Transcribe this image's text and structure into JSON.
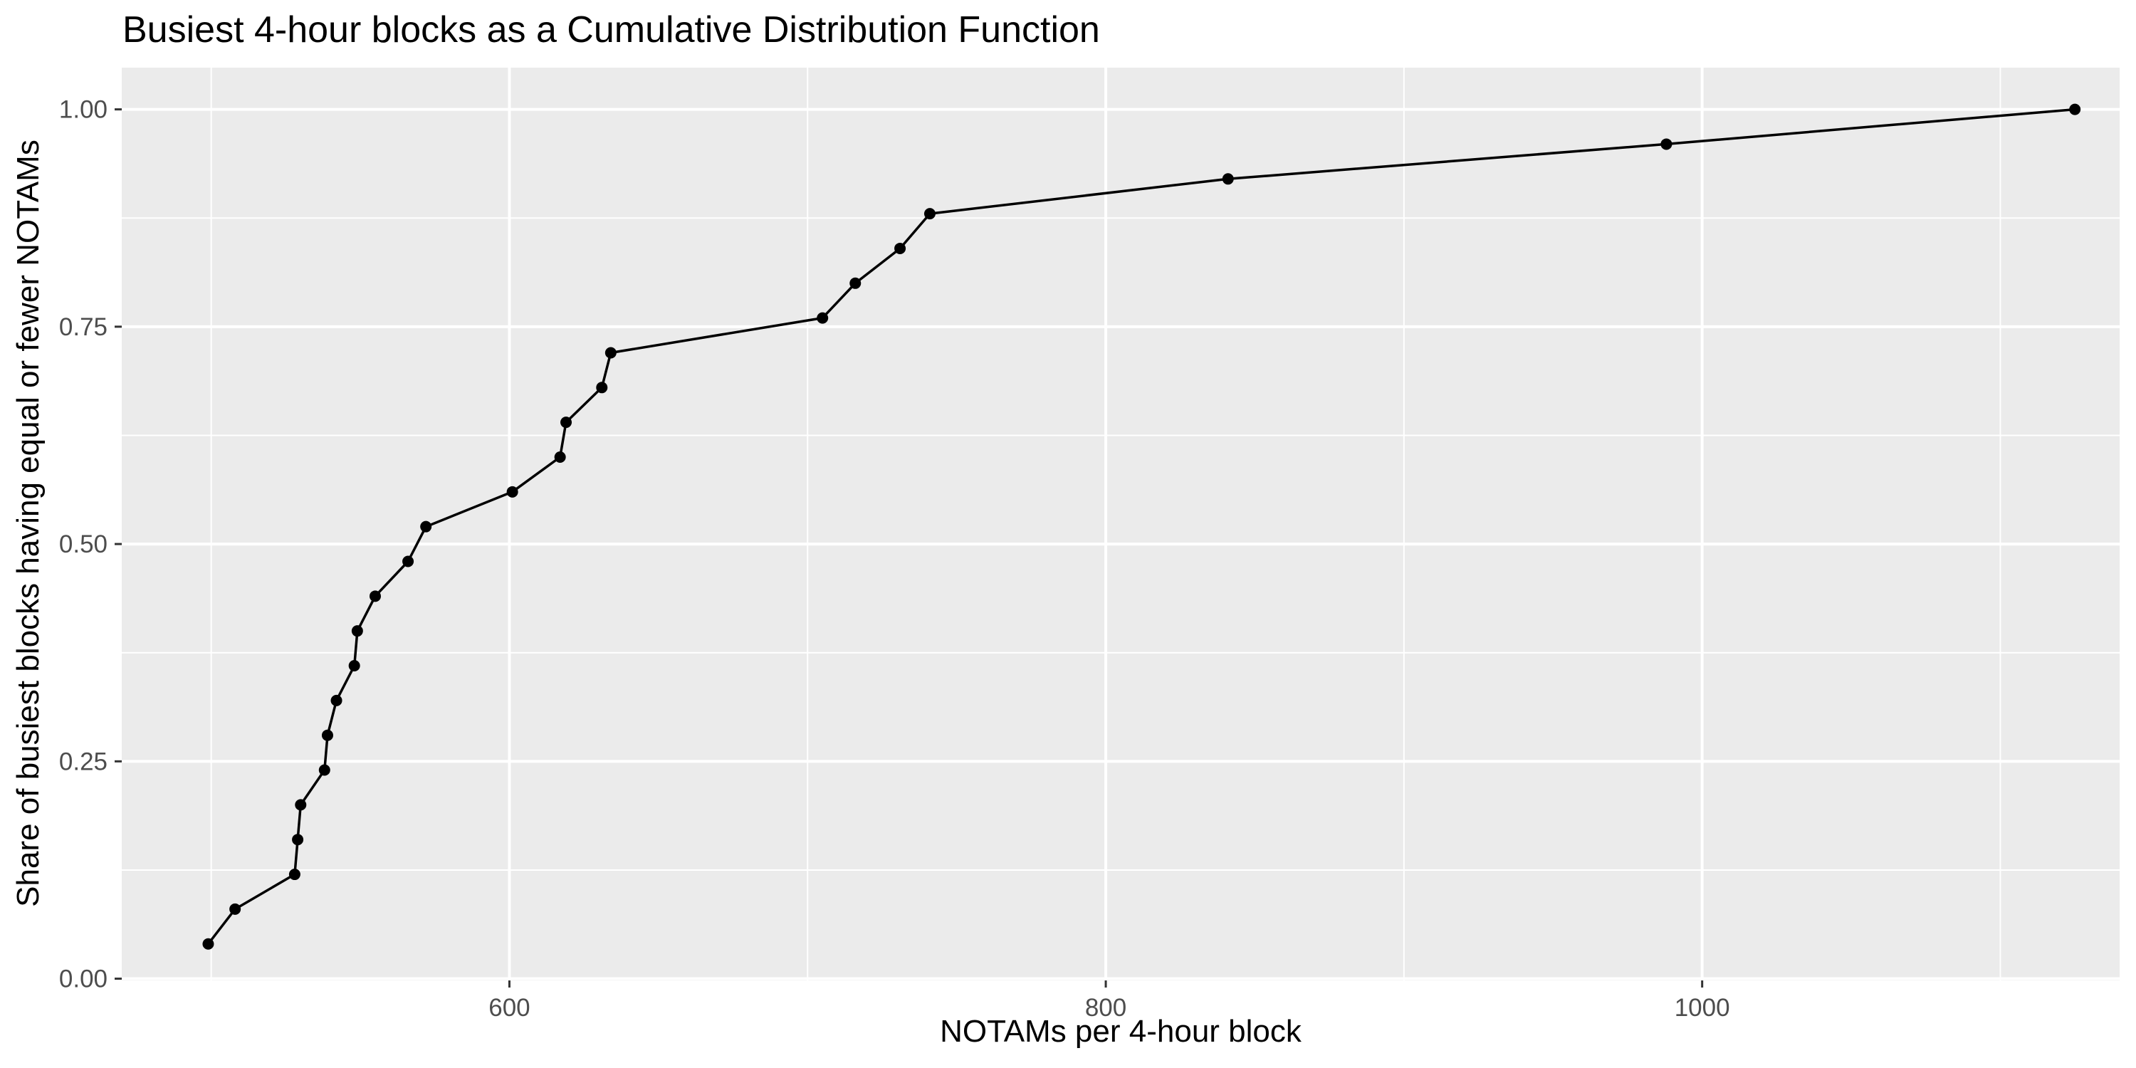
{
  "chart_data": {
    "type": "line",
    "title": "Busiest 4-hour blocks as a Cumulative Distribution Function",
    "xlabel": "NOTAMs per 4-hour block",
    "ylabel": "Share of busiest blocks having equal or fewer NOTAMs",
    "xlim": [
      470,
      1140
    ],
    "ylim": [
      -0.002,
      1.048
    ],
    "x_ticks": [
      600,
      800,
      1000
    ],
    "x_tick_labels": [
      "600",
      "800",
      "1000"
    ],
    "x_minor_ticks": [
      500,
      700,
      900,
      1100
    ],
    "y_ticks": [
      0.0,
      0.25,
      0.5,
      0.75,
      1.0
    ],
    "y_tick_labels": [
      "0.00",
      "0.25",
      "0.50",
      "0.75",
      "1.00"
    ],
    "y_minor_ticks": [
      0.125,
      0.375,
      0.625,
      0.875
    ],
    "grid": true,
    "panel_background": "#EBEBEB",
    "grid_color": "#FFFFFF",
    "line_color": "#000000",
    "x": [
      499,
      508,
      528,
      529,
      530,
      538,
      539,
      542,
      548,
      549,
      555,
      566,
      572,
      601,
      617,
      619,
      631,
      634,
      705,
      716,
      731,
      741,
      841,
      988,
      1125
    ],
    "y": [
      0.04,
      0.08,
      0.12,
      0.16,
      0.2,
      0.24,
      0.28,
      0.32,
      0.36,
      0.4,
      0.44,
      0.48,
      0.52,
      0.56,
      0.6,
      0.64,
      0.68,
      0.72,
      0.76,
      0.8,
      0.84,
      0.88,
      0.92,
      0.96,
      1.0
    ]
  }
}
